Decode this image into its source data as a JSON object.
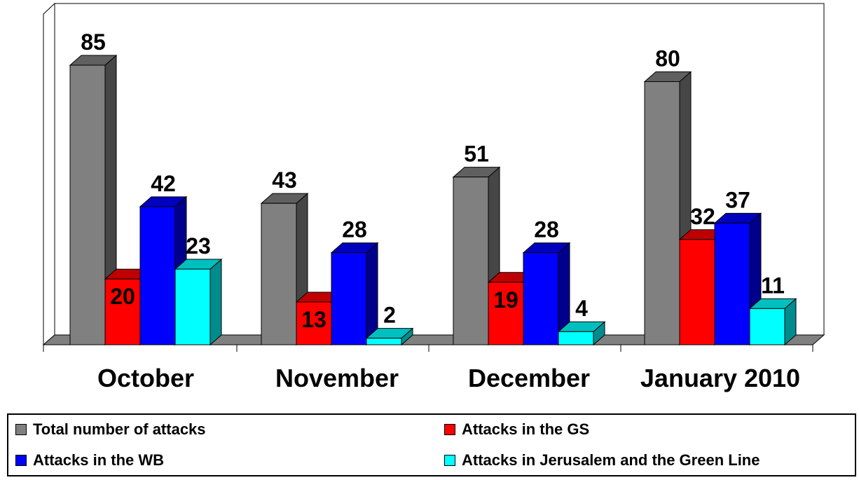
{
  "chart_data": {
    "type": "bar",
    "categories": [
      "October",
      "November",
      "December",
      "January 2010"
    ],
    "series": [
      {
        "name": "Total number of attacks",
        "color": "#808080",
        "values": [
          85,
          43,
          51,
          80
        ]
      },
      {
        "name": "Attacks in the GS",
        "color": "#ff0000",
        "values": [
          20,
          13,
          19,
          32
        ]
      },
      {
        "name": "Attacks in the WB",
        "color": "#0000ff",
        "values": [
          42,
          28,
          28,
          37
        ]
      },
      {
        "name": "Attacks in Jerusalem and the Green Line",
        "color": "#00ffff",
        "values": [
          23,
          2,
          4,
          11
        ]
      }
    ],
    "title": "",
    "xlabel": "",
    "ylabel": "",
    "ylim": [
      0,
      85
    ],
    "grid": false,
    "legend_position": "bottom"
  }
}
